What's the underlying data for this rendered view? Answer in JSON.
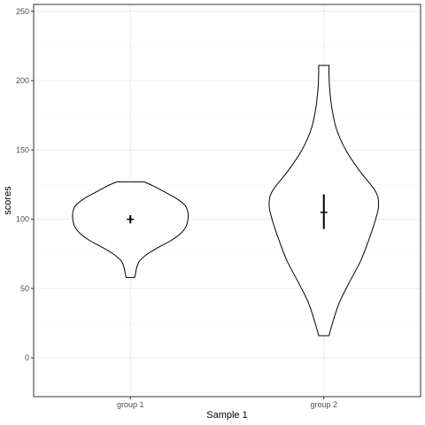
{
  "chart_data": {
    "type": "violin",
    "xlabel": "Sample 1",
    "ylabel": "scores",
    "ylim": [
      -28,
      255
    ],
    "y_ticks": [
      0,
      50,
      100,
      150,
      200,
      250
    ],
    "categories": [
      "group 1",
      "group 2"
    ],
    "grid": true,
    "colors": {
      "outline": "#000000",
      "grid": "#ebebeb",
      "panel_border": "#333333"
    },
    "violins": [
      {
        "category": "group 1",
        "min": 58,
        "max": 127,
        "center": 100,
        "summary_range": [
          97,
          103
        ],
        "density": [
          [
            58,
            0.074
          ],
          [
            60,
            0.085
          ],
          [
            65,
            0.11
          ],
          [
            70,
            0.16
          ],
          [
            75,
            0.3
          ],
          [
            80,
            0.5
          ],
          [
            85,
            0.72
          ],
          [
            90,
            0.88
          ],
          [
            95,
            0.97
          ],
          [
            100,
            1.0
          ],
          [
            105,
            1.0
          ],
          [
            110,
            0.95
          ],
          [
            115,
            0.8
          ],
          [
            120,
            0.58
          ],
          [
            124,
            0.4
          ],
          [
            127,
            0.24
          ]
        ]
      },
      {
        "category": "group 2",
        "min": 16,
        "max": 211,
        "center": 105,
        "summary_range": [
          93,
          118
        ],
        "density": [
          [
            16,
            0.09
          ],
          [
            25,
            0.15
          ],
          [
            40,
            0.27
          ],
          [
            55,
            0.45
          ],
          [
            70,
            0.64
          ],
          [
            85,
            0.78
          ],
          [
            100,
            0.9
          ],
          [
            110,
            0.95
          ],
          [
            120,
            0.9
          ],
          [
            135,
            0.62
          ],
          [
            150,
            0.38
          ],
          [
            165,
            0.22
          ],
          [
            180,
            0.14
          ],
          [
            195,
            0.1
          ],
          [
            205,
            0.09
          ],
          [
            211,
            0.09
          ]
        ]
      }
    ]
  }
}
